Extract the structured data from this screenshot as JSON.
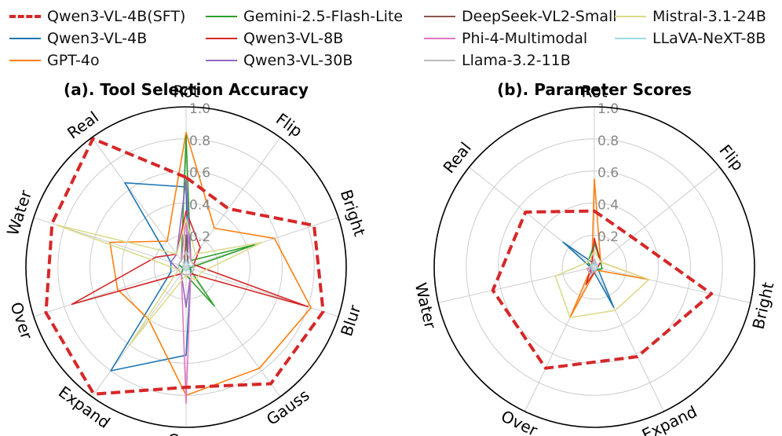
{
  "legend": [
    {
      "name": "Qwen3-VL-4B(SFT)",
      "color": "#d62728",
      "dashed": true
    },
    {
      "name": "Qwen3-VL-4B",
      "color": "#1f77b4",
      "dashed": false
    },
    {
      "name": "GPT-4o",
      "color": "#ff7f0e",
      "dashed": false
    },
    {
      "name": "Gemini-2.5-Flash-Lite",
      "color": "#2ca02c",
      "dashed": false
    },
    {
      "name": "Qwen3-VL-8B",
      "color": "#d62728",
      "dashed": false
    },
    {
      "name": "Qwen3-VL-30B",
      "color": "#9467bd",
      "dashed": false
    },
    {
      "name": "DeepSeek-VL2-Small",
      "color": "#8c564b",
      "dashed": false
    },
    {
      "name": "Phi-4-Multimodal",
      "color": "#e377c2",
      "dashed": false
    },
    {
      "name": "Llama-3.2-11B",
      "color": "#bbbbbb",
      "dashed": false
    },
    {
      "name": "Mistral-3.1-24B",
      "color": "#dbdb8d",
      "dashed": false
    },
    {
      "name": "LLaVA-NeXT-8B",
      "color": "#9edae5",
      "dashed": false
    }
  ],
  "chart_data": [
    {
      "type": "radar",
      "title": "(a). Tool Selection Accuracy",
      "axes": [
        "Rot",
        "Flip",
        "Bright",
        "Blur",
        "Gauss",
        "Crop",
        "Expand",
        "Over",
        "Water",
        "Real"
      ],
      "rlim": [
        0,
        1.0
      ],
      "rticks": [
        "0.2",
        "0.4",
        "0.6",
        "0.8",
        "1.0"
      ],
      "series": [
        {
          "name": "Qwen3-VL-4B(SFT)",
          "values": [
            0.56,
            0.45,
            0.84,
            0.9,
            0.9,
            0.75,
            0.98,
            0.92,
            0.88,
            0.99
          ]
        },
        {
          "name": "Qwen3-VL-4B",
          "values": [
            0.5,
            0.02,
            0.02,
            0.03,
            0.05,
            0.55,
            0.8,
            0.1,
            0.1,
            0.65
          ]
        },
        {
          "name": "GPT-4o",
          "values": [
            0.84,
            0.3,
            0.58,
            0.82,
            0.78,
            0.8,
            0.4,
            0.45,
            0.5,
            0.2
          ]
        },
        {
          "name": "Gemini-2.5-Flash-Lite",
          "values": [
            0.82,
            0.05,
            0.45,
            0.02,
            0.3,
            0.05,
            0.05,
            0.02,
            0.05,
            0.05
          ]
        },
        {
          "name": "Qwen3-VL-8B",
          "values": [
            0.35,
            0.15,
            0.05,
            0.8,
            0.05,
            0.05,
            0.05,
            0.75,
            0.2,
            0.1
          ]
        },
        {
          "name": "Qwen3-VL-30B",
          "values": [
            0.55,
            0.05,
            0.05,
            0.05,
            0.05,
            0.25,
            0.05,
            0.05,
            0.1,
            0.1
          ]
        },
        {
          "name": "DeepSeek-VL2-Small",
          "values": [
            0.2,
            0.02,
            0.02,
            0.02,
            0.02,
            0.02,
            0.02,
            0.02,
            0.02,
            0.02
          ]
        },
        {
          "name": "Phi-4-Multimodal",
          "values": [
            0.3,
            0.05,
            0.05,
            0.05,
            0.05,
            0.85,
            0.05,
            0.05,
            0.05,
            0.05
          ]
        },
        {
          "name": "Llama-3.2-11B",
          "values": [
            0.1,
            0.05,
            0.05,
            0.05,
            0.05,
            0.05,
            0.05,
            0.05,
            0.05,
            0.05
          ]
        },
        {
          "name": "Mistral-3.1-24B",
          "values": [
            0.3,
            0.1,
            0.5,
            0.1,
            0.1,
            0.05,
            0.6,
            0.05,
            0.85,
            0.1
          ]
        },
        {
          "name": "LLaVA-NeXT-8B",
          "values": [
            0.05,
            0.02,
            0.02,
            0.02,
            0.02,
            0.02,
            0.02,
            0.02,
            0.02,
            0.02
          ]
        }
      ]
    },
    {
      "type": "radar",
      "title": "(b). Parameter Scores",
      "axes": [
        "Rot",
        "Flip",
        "Bright",
        "Expand",
        "Over",
        "Water",
        "Real"
      ],
      "rlim": [
        0,
        1.0
      ],
      "rticks": [
        "0.2",
        "0.4",
        "0.6",
        "0.8",
        "1.0"
      ],
      "series": [
        {
          "name": "Qwen3-VL-4B(SFT)",
          "values": [
            0.35,
            0.3,
            0.75,
            0.62,
            0.7,
            0.65,
            0.55
          ]
        },
        {
          "name": "Qwen3-VL-4B",
          "values": [
            0.02,
            0.02,
            0.02,
            0.28,
            0.02,
            0.02,
            0.25
          ]
        },
        {
          "name": "GPT-4o",
          "values": [
            0.55,
            0.05,
            0.35,
            0.02,
            0.35,
            0.02,
            0.02
          ]
        },
        {
          "name": "Gemini-2.5-Flash-Lite",
          "values": [
            0.15,
            0.05,
            0.05,
            0.02,
            0.02,
            0.02,
            0.05
          ]
        },
        {
          "name": "Qwen3-VL-8B",
          "values": [
            0.18,
            0.05,
            0.02,
            0.02,
            0.12,
            0.02,
            0.02
          ]
        },
        {
          "name": "Qwen3-VL-30B",
          "values": [
            0.05,
            0.02,
            0.02,
            0.02,
            0.05,
            0.02,
            0.02
          ]
        },
        {
          "name": "DeepSeek-VL2-Small",
          "values": [
            0.02,
            0.02,
            0.02,
            0.02,
            0.02,
            0.02,
            0.02
          ]
        },
        {
          "name": "Phi-4-Multimodal",
          "values": [
            0.05,
            0.02,
            0.02,
            0.02,
            0.02,
            0.05,
            0.02
          ]
        },
        {
          "name": "Llama-3.2-11B",
          "values": [
            0.05,
            0.02,
            0.02,
            0.02,
            0.05,
            0.05,
            0.02
          ]
        },
        {
          "name": "Mistral-3.1-24B",
          "values": [
            0.1,
            0.05,
            0.35,
            0.3,
            0.35,
            0.25,
            0.05
          ]
        },
        {
          "name": "LLaVA-NeXT-8B",
          "values": [
            0.02,
            0.02,
            0.02,
            0.02,
            0.02,
            0.02,
            0.02
          ]
        }
      ]
    }
  ]
}
